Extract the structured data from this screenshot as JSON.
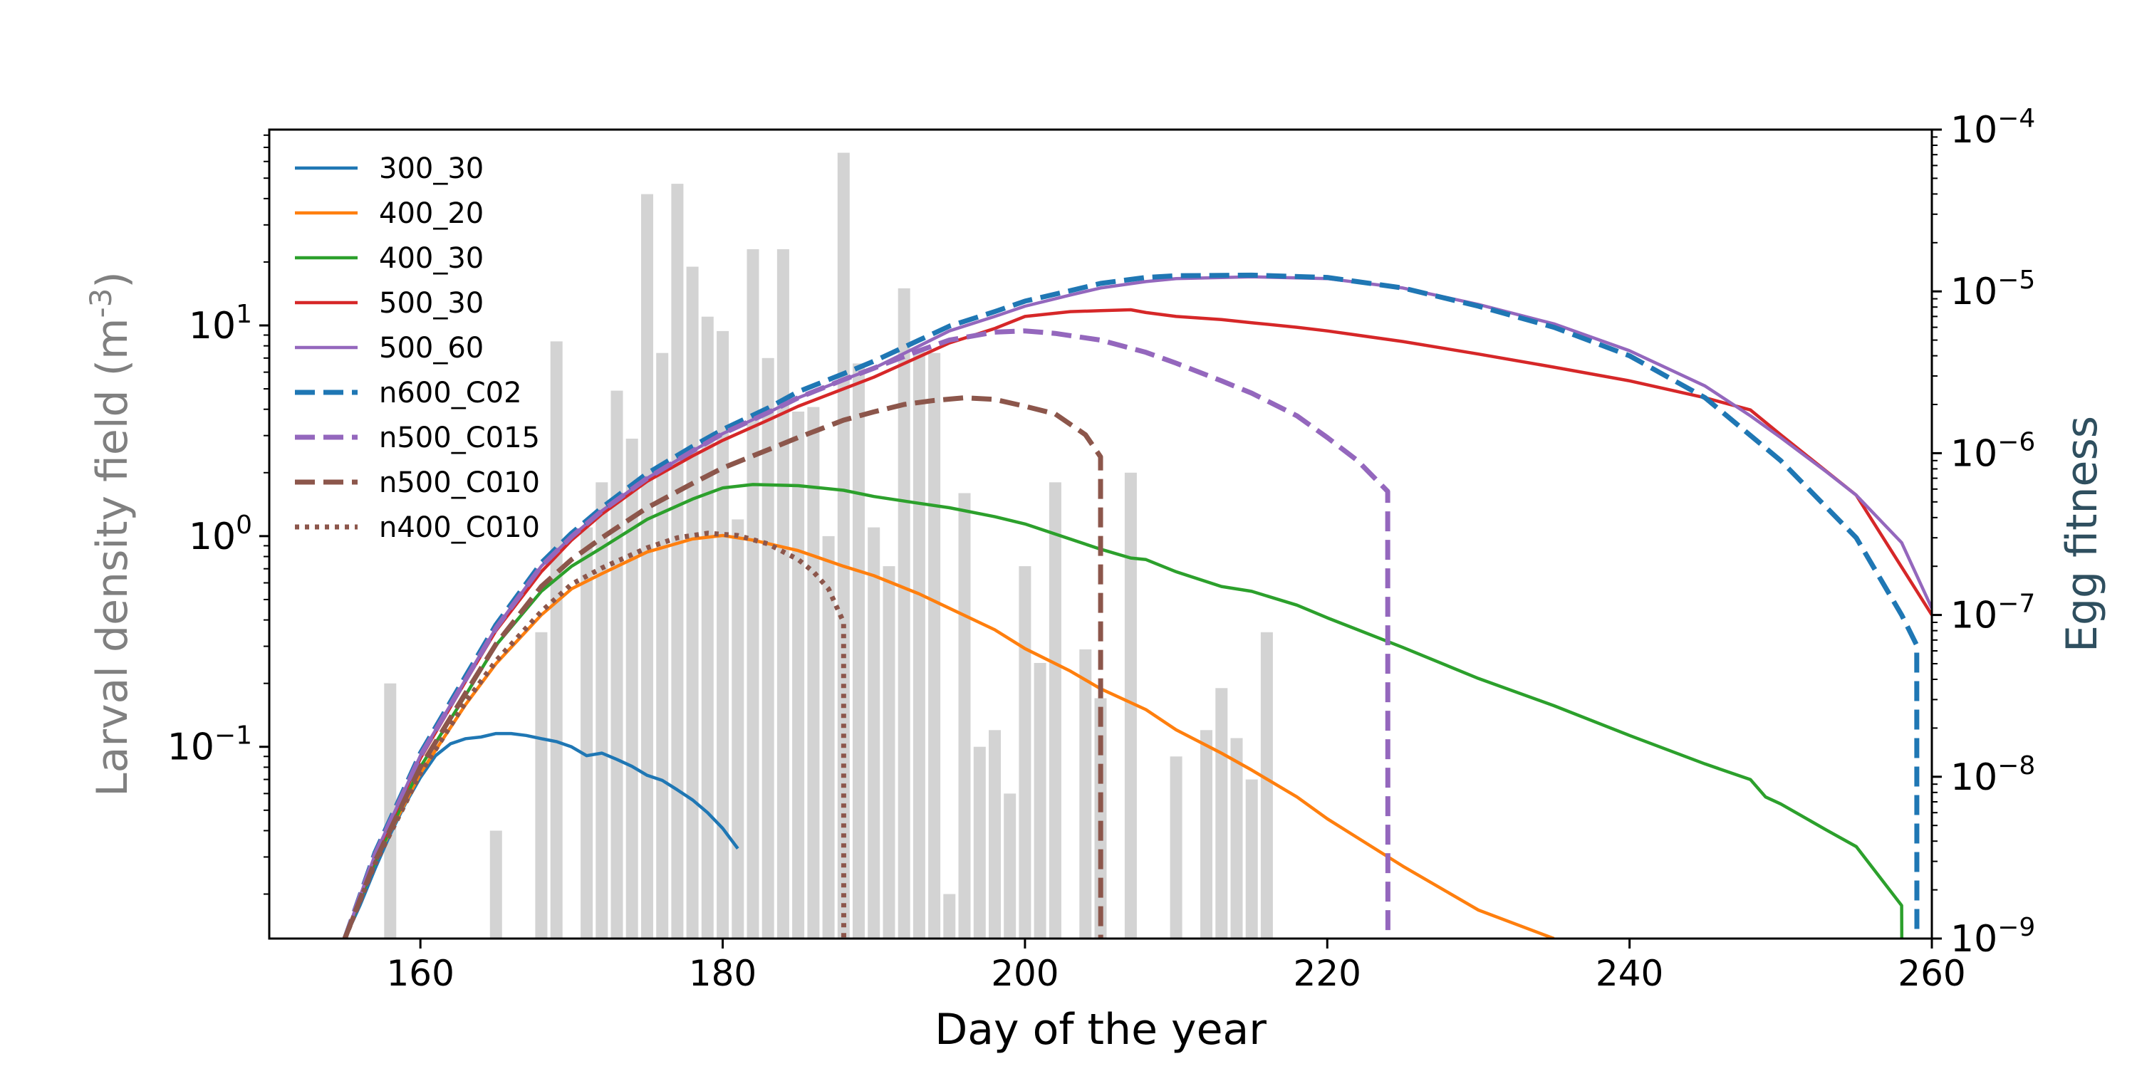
{
  "chart_data": {
    "type": "line",
    "title": "",
    "xlabel": "Day of the year",
    "ylabel_left": "Larval density field (m-3)",
    "ylabel_left_base": "Larval density field (m",
    "ylabel_left_sup": "-3",
    "ylabel_left_tail": ")",
    "ylabel_right": "Egg fitness",
    "xlim": [
      150,
      260
    ],
    "x_ticks": [
      160,
      180,
      200,
      220,
      240,
      260
    ],
    "x_tick_labels": [
      "160",
      "180",
      "200",
      "220",
      "240",
      "260"
    ],
    "y_left_scale": "log",
    "y_left_lim": [
      0.0123,
      85
    ],
    "y_left_ticks": [
      {
        "value": 0.1,
        "base": "10",
        "exp": "−1"
      },
      {
        "value": 1,
        "base": "10",
        "exp": "0"
      },
      {
        "value": 10,
        "base": "10",
        "exp": "1"
      }
    ],
    "y_right_scale": "log",
    "y_right_lim": [
      1e-09,
      0.0001
    ],
    "y_right_ticks": [
      {
        "value": 1e-09,
        "base": "10",
        "exp": "−9"
      },
      {
        "value": 1e-08,
        "base": "10",
        "exp": "−8"
      },
      {
        "value": 1e-07,
        "base": "10",
        "exp": "−7"
      },
      {
        "value": 1e-06,
        "base": "10",
        "exp": "−6"
      },
      {
        "value": 1e-05,
        "base": "10",
        "exp": "−5"
      },
      {
        "value": 0.0001,
        "base": "10",
        "exp": "−4"
      }
    ],
    "grid": false,
    "legend_position": "upper-left",
    "colors": {
      "bars": "#d3d3d3",
      "left_label": "#808080",
      "right_label": "#2f4f5f",
      "axis": "#000000"
    },
    "bars": {
      "axis": "left",
      "x": [
        158,
        165,
        168,
        169,
        171,
        172,
        173,
        174,
        175,
        176,
        177,
        178,
        179,
        180,
        181,
        182,
        183,
        184,
        185,
        186,
        187,
        188,
        189,
        190,
        191,
        192,
        193,
        194,
        195,
        196,
        197,
        198,
        199,
        200,
        201,
        202,
        204,
        205,
        207,
        210,
        212,
        213,
        214,
        215,
        216
      ],
      "values": [
        0.2,
        0.04,
        0.35,
        8.4,
        1.1,
        1.8,
        4.9,
        2.9,
        42,
        7.4,
        47,
        19,
        11,
        9.4,
        1.2,
        23,
        7.0,
        23,
        3.9,
        4.1,
        1.0,
        66,
        6.6,
        1.1,
        0.72,
        15,
        7.5,
        7.4,
        0.02,
        1.6,
        0.1,
        0.12,
        0.06,
        0.72,
        0.25,
        1.8,
        0.29,
        0.17,
        2.0,
        0.09,
        0.12,
        0.19,
        0.11,
        0.07,
        0.35
      ]
    },
    "series": [
      {
        "name": "300_30",
        "color": "#1f77b4",
        "style": "solid",
        "axis": "right",
        "x": [
          155,
          156,
          157,
          158,
          159,
          160,
          161,
          162,
          163,
          164,
          165,
          166,
          167,
          168,
          169,
          170,
          171,
          172,
          173,
          174,
          175,
          176,
          177,
          178,
          179,
          180,
          181
        ],
        "values": [
          1e-09,
          1.6e-09,
          2.7e-09,
          4.4e-09,
          6.8e-09,
          9.9e-09,
          1.35e-08,
          1.6e-08,
          1.72e-08,
          1.76e-08,
          1.85e-08,
          1.85e-08,
          1.8e-08,
          1.72e-08,
          1.65e-08,
          1.53e-08,
          1.35e-08,
          1.4e-08,
          1.28e-08,
          1.16e-08,
          1.02e-08,
          9.5e-09,
          8.3e-09,
          7.2e-09,
          6e-09,
          4.8e-09,
          3.6e-09
        ]
      },
      {
        "name": "400_20",
        "color": "#ff7f0e",
        "style": "solid",
        "axis": "right",
        "x": [
          155,
          157,
          160,
          163,
          165,
          168,
          170,
          172,
          175,
          178,
          180,
          182,
          185,
          188,
          190,
          193,
          195,
          198,
          200,
          203,
          205,
          208,
          210,
          213,
          215,
          218,
          220,
          225,
          230,
          235
        ],
        "values": [
          1e-09,
          3e-09,
          1.05e-08,
          2.8e-08,
          5e-08,
          1e-07,
          1.45e-07,
          1.8e-07,
          2.45e-07,
          2.95e-07,
          3.1e-07,
          2.9e-07,
          2.5e-07,
          2e-07,
          1.75e-07,
          1.35e-07,
          1.1e-07,
          8.1e-08,
          6.2e-08,
          4.5e-08,
          3.5e-08,
          2.6e-08,
          1.95e-08,
          1.4e-08,
          1.1e-08,
          7.5e-09,
          5.5e-09,
          2.8e-09,
          1.5e-09,
          1e-09
        ]
      },
      {
        "name": "400_30",
        "color": "#2ca02c",
        "style": "solid",
        "axis": "right",
        "x": [
          155,
          157,
          160,
          163,
          165,
          168,
          170,
          172,
          175,
          178,
          180,
          182,
          185,
          188,
          190,
          193,
          195,
          198,
          200,
          205,
          207,
          208,
          210,
          213,
          215,
          218,
          220,
          225,
          230,
          235,
          240,
          245,
          248,
          249,
          250,
          253,
          255,
          258,
          258.01
        ],
        "values": [
          1e-09,
          3e-09,
          1.15e-08,
          3.2e-08,
          6.5e-08,
          1.4e-07,
          2e-07,
          2.6e-07,
          3.9e-07,
          5.2e-07,
          6.1e-07,
          6.4e-07,
          6.3e-07,
          5.9e-07,
          5.4e-07,
          4.9e-07,
          4.6e-07,
          4.05e-07,
          3.65e-07,
          2.55e-07,
          2.25e-07,
          2.2e-07,
          1.85e-07,
          1.5e-07,
          1.4e-07,
          1.15e-07,
          9.6e-08,
          6.3e-08,
          4.05e-08,
          2.75e-08,
          1.8e-08,
          1.2e-08,
          9.6e-09,
          7.5e-09,
          6.8e-09,
          4.7e-09,
          3.7e-09,
          1.6e-09,
          1e-09
        ]
      },
      {
        "name": "500_30",
        "color": "#d62728",
        "style": "solid",
        "axis": "right",
        "x": [
          155,
          157,
          160,
          163,
          165,
          168,
          170,
          172,
          175,
          178,
          180,
          183,
          185,
          188,
          190,
          193,
          195,
          198,
          200,
          203,
          205,
          207,
          208,
          210,
          213,
          215,
          218,
          220,
          225,
          230,
          235,
          240,
          245,
          248,
          250,
          255,
          260
        ],
        "values": [
          1e-09,
          3.2e-09,
          1.3e-08,
          3.9e-08,
          8e-08,
          1.85e-07,
          2.9e-07,
          4.2e-07,
          6.7e-07,
          9.6e-07,
          1.2e-06,
          1.6e-06,
          1.95e-06,
          2.5e-06,
          2.95e-06,
          3.95e-06,
          4.8e-06,
          5.9e-06,
          7e-06,
          7.5e-06,
          7.6e-06,
          7.7e-06,
          7.4e-06,
          7e-06,
          6.7e-06,
          6.4e-06,
          6e-06,
          5.7e-06,
          4.9e-06,
          4.1e-06,
          3.4e-06,
          2.8e-06,
          2.2e-06,
          1.85e-06,
          1.3e-06,
          5.5e-07,
          1e-07
        ]
      },
      {
        "name": "500_60",
        "color": "#9467bd",
        "style": "solid",
        "axis": "right",
        "x": [
          155,
          157,
          160,
          163,
          165,
          168,
          170,
          172,
          175,
          178,
          180,
          183,
          185,
          188,
          190,
          193,
          195,
          198,
          200,
          203,
          205,
          208,
          210,
          215,
          220,
          225,
          230,
          235,
          240,
          245,
          248,
          250,
          253,
          255,
          258,
          260
        ],
        "values": [
          1e-09,
          3.3e-09,
          1.35e-08,
          4e-08,
          8.3e-08,
          2e-07,
          3.05e-07,
          4.4e-07,
          7e-07,
          1.03e-06,
          1.32e-06,
          1.78e-06,
          2.2e-06,
          2.85e-06,
          3.35e-06,
          4.6e-06,
          5.7e-06,
          7e-06,
          8.1e-06,
          9.5e-06,
          1.05e-05,
          1.15e-05,
          1.2e-05,
          1.23e-05,
          1.2e-05,
          1.05e-05,
          8.3e-06,
          6.3e-06,
          4.3e-06,
          2.6e-06,
          1.7e-06,
          1.25e-06,
          7.7e-07,
          5.5e-07,
          2.8e-07,
          1.1e-07
        ]
      },
      {
        "name": "n600_C02",
        "color": "#1f77b4",
        "style": "dashed",
        "axis": "right",
        "x": [
          155,
          157,
          160,
          163,
          165,
          168,
          170,
          172,
          175,
          178,
          180,
          183,
          185,
          188,
          190,
          193,
          195,
          198,
          200,
          203,
          205,
          208,
          210,
          215,
          220,
          225,
          230,
          235,
          240,
          245,
          250,
          255,
          258,
          259,
          259.01
        ],
        "values": [
          1e-09,
          3.4e-09,
          1.4e-08,
          4.2e-08,
          8.7e-08,
          2.1e-07,
          3.2e-07,
          4.6e-07,
          7.5e-07,
          1.1e-06,
          1.4e-06,
          1.9e-06,
          2.4e-06,
          3.1e-06,
          3.7e-06,
          5e-06,
          6.1e-06,
          7.5e-06,
          8.7e-06,
          1.01e-05,
          1.12e-05,
          1.22e-05,
          1.25e-05,
          1.26e-05,
          1.22e-05,
          1.05e-05,
          8.1e-06,
          6e-06,
          4e-06,
          2.2e-06,
          9e-07,
          3e-07,
          1e-07,
          6.5e-08,
          1e-09
        ]
      },
      {
        "name": "n500_C015",
        "color": "#9467bd",
        "style": "dashed",
        "axis": "right",
        "x": [
          155,
          157,
          160,
          163,
          165,
          168,
          170,
          172,
          175,
          178,
          180,
          183,
          185,
          188,
          190,
          193,
          195,
          198,
          200,
          202,
          205,
          208,
          210,
          213,
          215,
          218,
          220,
          222,
          224,
          224.01
        ],
        "values": [
          1e-09,
          3.3e-09,
          1.35e-08,
          4e-08,
          8.3e-08,
          2e-07,
          3.05e-07,
          4.4e-07,
          7e-07,
          1.03e-06,
          1.32e-06,
          1.78e-06,
          2.2e-06,
          2.85e-06,
          3.35e-06,
          4.3e-06,
          5e-06,
          5.6e-06,
          5.7e-06,
          5.5e-06,
          5e-06,
          4.2e-06,
          3.6e-06,
          2.8e-06,
          2.35e-06,
          1.7e-06,
          1.25e-06,
          9e-07,
          5.8e-07,
          1e-09
        ]
      },
      {
        "name": "n500_C010",
        "color": "#8c564b",
        "style": "dashed",
        "axis": "right",
        "x": [
          155,
          157,
          160,
          163,
          165,
          168,
          170,
          172,
          175,
          178,
          180,
          183,
          185,
          188,
          190,
          192,
          194,
          196,
          198,
          200,
          202,
          204,
          205,
          205.01
        ],
        "values": [
          1e-09,
          3e-09,
          1.15e-08,
          3.3e-08,
          6.6e-08,
          1.5e-07,
          2.2e-07,
          3e-07,
          4.6e-07,
          6.5e-07,
          8.1e-07,
          1.05e-06,
          1.25e-06,
          1.6e-06,
          1.8e-06,
          2e-06,
          2.12e-06,
          2.2e-06,
          2.15e-06,
          1.95e-06,
          1.75e-06,
          1.3e-06,
          9.5e-07,
          1e-09
        ]
      },
      {
        "name": "n400_C010",
        "color": "#8c564b",
        "style": "dotted",
        "axis": "right",
        "x": [
          155,
          157,
          160,
          163,
          165,
          168,
          170,
          172,
          175,
          177,
          179,
          181,
          183,
          185,
          186,
          187,
          188,
          188.01
        ],
        "values": [
          1e-09,
          2.9e-09,
          1.05e-08,
          2.9e-08,
          5.2e-08,
          1.05e-07,
          1.55e-07,
          1.95e-07,
          2.6e-07,
          3e-07,
          3.2e-07,
          3.1e-07,
          2.75e-07,
          2.2e-07,
          1.85e-07,
          1.45e-07,
          9e-08,
          1e-09
        ]
      }
    ]
  }
}
